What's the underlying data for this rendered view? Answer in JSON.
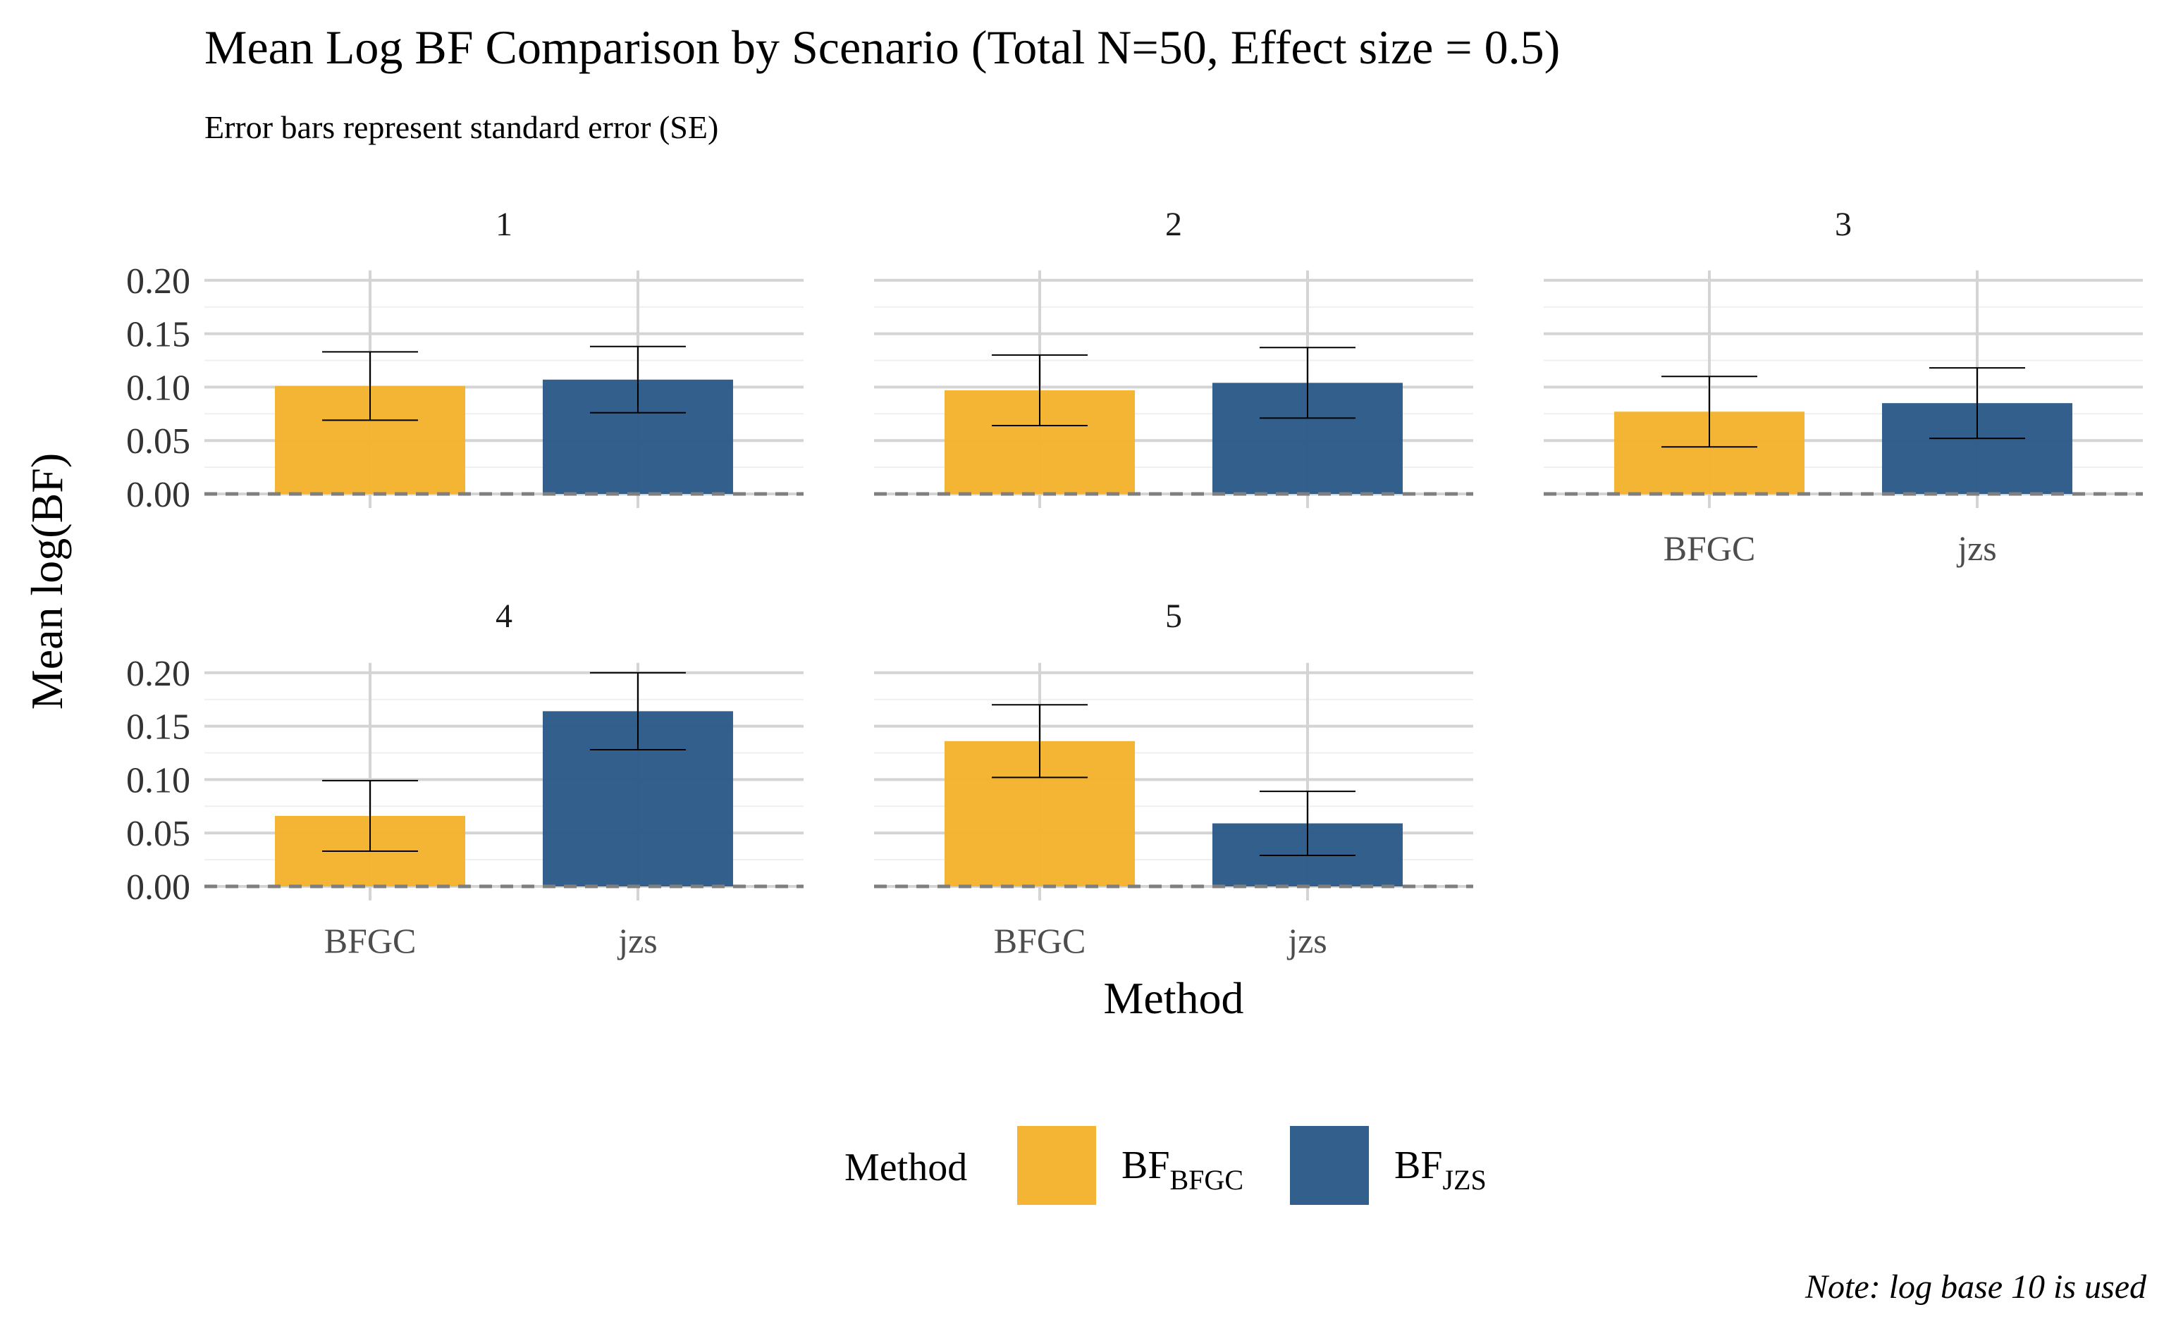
{
  "chart_data": {
    "type": "bar",
    "title": "Mean Log BF Comparison by Scenario (Total N=50, Effect size = 0.5)",
    "subtitle": "Error bars represent standard error (SE)",
    "xlabel": "Method",
    "ylabel": "Mean log(BF)",
    "caption": "Note: log base 10 is used",
    "ylim": [
      0,
      0.2
    ],
    "yticks": [
      "0.00",
      "0.05",
      "0.10",
      "0.15",
      "0.20"
    ],
    "categories": [
      "BFGC",
      "jzs"
    ],
    "colors": {
      "BFGC": "#F3B42F",
      "jzs": "#2F5C8A"
    },
    "grid": true,
    "reference_line": 0,
    "legend": {
      "title": "Method",
      "position": "bottom",
      "entries": [
        {
          "key": "BFGC",
          "base": "BF",
          "sub": "BFGC"
        },
        {
          "key": "jzs",
          "base": "BF",
          "sub": "JZS"
        }
      ]
    },
    "panels": [
      {
        "label": "1",
        "values": [
          0.101,
          0.107
        ],
        "se": [
          0.032,
          0.031
        ]
      },
      {
        "label": "2",
        "values": [
          0.097,
          0.104
        ],
        "se": [
          0.033,
          0.033
        ]
      },
      {
        "label": "3",
        "values": [
          0.077,
          0.085
        ],
        "se": [
          0.033,
          0.033
        ]
      },
      {
        "label": "4",
        "values": [
          0.066,
          0.164
        ],
        "se": [
          0.033,
          0.036
        ]
      },
      {
        "label": "5",
        "values": [
          0.136,
          0.059
        ],
        "se": [
          0.034,
          0.03
        ]
      }
    ]
  }
}
